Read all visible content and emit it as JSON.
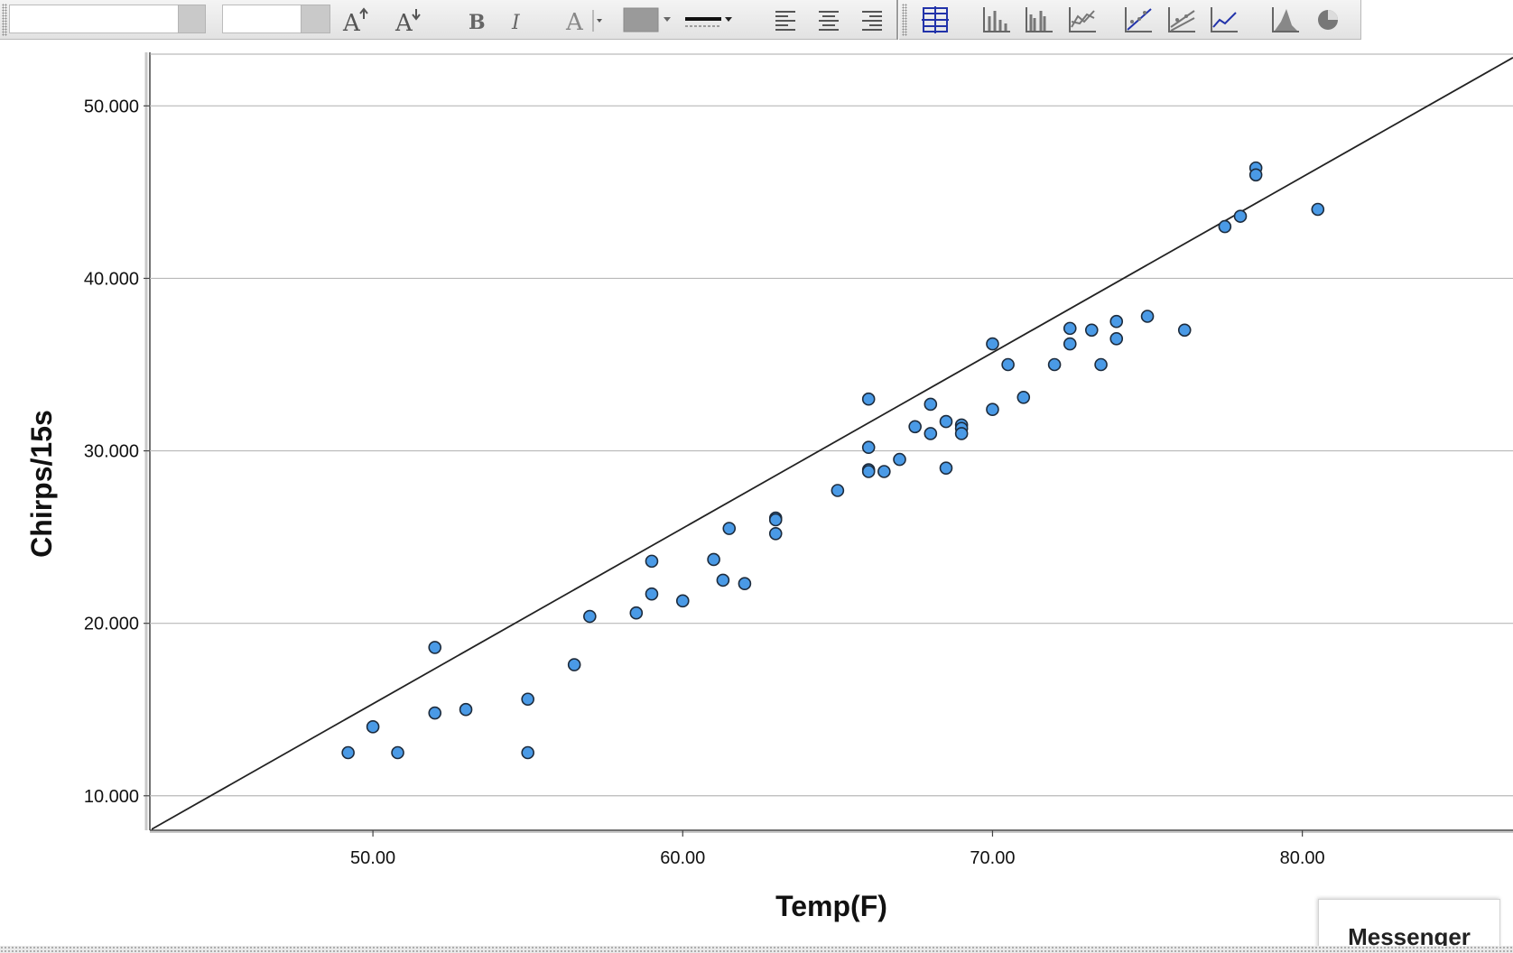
{
  "toolbar": {
    "font_name_value": "",
    "font_size_value": "",
    "buttons": [
      {
        "name": "increase-font-size-icon",
        "glyph": "A↑"
      },
      {
        "name": "decrease-font-size-icon",
        "glyph": "A↓"
      },
      {
        "name": "bold-icon",
        "glyph": "B"
      },
      {
        "name": "italic-icon",
        "glyph": "I"
      },
      {
        "name": "text-color-icon",
        "glyph": "A"
      }
    ],
    "fill_color": "#9a9a9a",
    "line_color": "#111111",
    "accent_color": "#2233aa"
  },
  "chart_data": {
    "type": "scatter",
    "xlabel": "Temp(F)",
    "ylabel": "Chirps/15s",
    "xlim": [
      42.8,
      86.8
    ],
    "ylim": [
      8.0,
      53.0
    ],
    "x_ticks": [
      {
        "value": 50,
        "label": "50.00"
      },
      {
        "value": 60,
        "label": "60.00"
      },
      {
        "value": 70,
        "label": "70.00"
      },
      {
        "value": 80,
        "label": "80.00"
      }
    ],
    "y_ticks": [
      {
        "value": 10,
        "label": "10.000"
      },
      {
        "value": 20,
        "label": "20.000"
      },
      {
        "value": 30,
        "label": "30.000"
      },
      {
        "value": 40,
        "label": "40.000"
      },
      {
        "value": 50,
        "label": "50.000"
      }
    ],
    "grid": {
      "horizontal": true,
      "vertical": false
    },
    "point_color": "#4a9ae6",
    "points": [
      [
        49.2,
        12.5
      ],
      [
        50.0,
        14.0
      ],
      [
        50.8,
        12.5
      ],
      [
        52.0,
        18.6
      ],
      [
        52.0,
        14.8
      ],
      [
        53.0,
        15.0
      ],
      [
        55.0,
        15.6
      ],
      [
        55.0,
        12.5
      ],
      [
        56.5,
        17.6
      ],
      [
        57.0,
        20.4
      ],
      [
        58.5,
        20.6
      ],
      [
        59.0,
        23.6
      ],
      [
        59.0,
        21.7
      ],
      [
        60.0,
        21.3
      ],
      [
        61.0,
        23.7
      ],
      [
        61.3,
        22.5
      ],
      [
        61.5,
        25.5
      ],
      [
        62.0,
        22.3
      ],
      [
        63.0,
        26.1
      ],
      [
        63.0,
        26.0
      ],
      [
        63.0,
        25.2
      ],
      [
        65.0,
        27.7
      ],
      [
        66.0,
        33.0
      ],
      [
        66.0,
        30.2
      ],
      [
        66.0,
        28.9
      ],
      [
        66.0,
        28.8
      ],
      [
        66.5,
        28.8
      ],
      [
        67.0,
        29.5
      ],
      [
        67.5,
        31.4
      ],
      [
        68.0,
        32.7
      ],
      [
        68.0,
        31.0
      ],
      [
        68.5,
        31.7
      ],
      [
        68.5,
        29.0
      ],
      [
        69.0,
        31.5
      ],
      [
        69.0,
        31.3
      ],
      [
        69.0,
        31.0
      ],
      [
        70.0,
        36.2
      ],
      [
        70.0,
        32.4
      ],
      [
        70.5,
        35.0
      ],
      [
        71.0,
        33.1
      ],
      [
        72.0,
        35.0
      ],
      [
        72.5,
        37.1
      ],
      [
        72.5,
        36.2
      ],
      [
        73.2,
        37.0
      ],
      [
        73.5,
        35.0
      ],
      [
        74.0,
        37.5
      ],
      [
        74.0,
        36.5
      ],
      [
        75.0,
        37.8
      ],
      [
        76.2,
        37.0
      ],
      [
        77.5,
        43.0
      ],
      [
        78.0,
        43.6
      ],
      [
        78.5,
        46.4
      ],
      [
        78.5,
        46.0
      ],
      [
        80.5,
        44.0
      ]
    ],
    "fit_line": {
      "x1": 42.8,
      "y1": 8.0,
      "x2": 86.8,
      "y2": 52.8
    }
  },
  "messenger": {
    "label": "Messenger"
  }
}
